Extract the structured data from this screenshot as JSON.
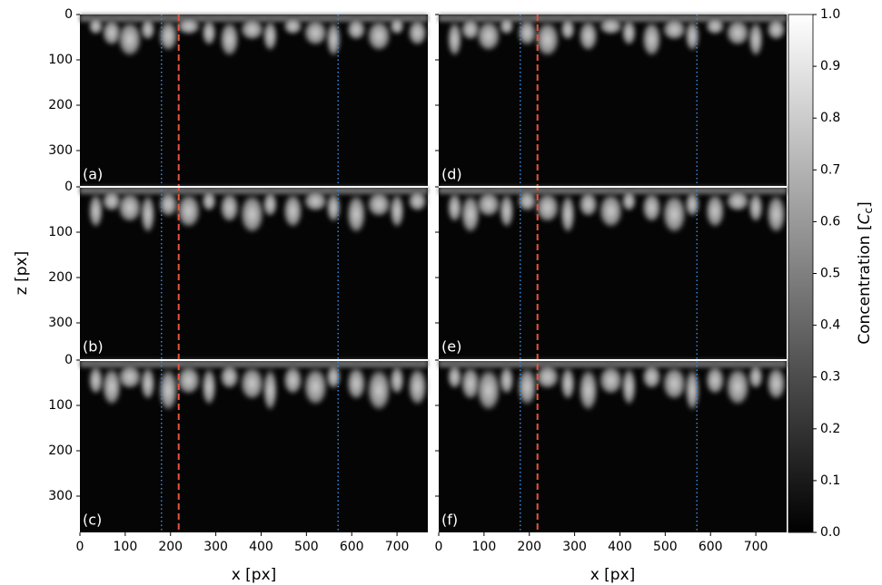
{
  "chart_data": {
    "type": "image",
    "xlabel": "x [px]",
    "ylabel": "z [px]",
    "xlim": [
      0,
      768
    ],
    "ylim": [
      0,
      380
    ],
    "xticks": [
      0,
      100,
      200,
      300,
      400,
      500,
      600,
      700
    ],
    "yticks": [
      0,
      100,
      200,
      300
    ],
    "panels": [
      {
        "label": "(a)"
      },
      {
        "label": "(b)"
      },
      {
        "label": "(c)"
      },
      {
        "label": "(d)"
      },
      {
        "label": "(e)"
      },
      {
        "label": "(f)"
      }
    ],
    "lines": [
      {
        "x": 180,
        "color": "#3a86d8",
        "style": "dotted"
      },
      {
        "x": 218,
        "color": "#e8533a",
        "style": "dashed"
      },
      {
        "x": 570,
        "color": "#3a86d8",
        "style": "dotted"
      }
    ],
    "colorbar": {
      "label": [
        "Concentration [",
        "C",
        "c",
        "]"
      ],
      "lim": [
        0,
        1
      ],
      "ticks": [
        {
          "value": 0,
          "label": "0.0"
        },
        {
          "value": 0.1,
          "label": "0.1"
        },
        {
          "value": 0.2,
          "label": "0.2"
        },
        {
          "value": 0.3,
          "label": "0.3"
        },
        {
          "value": 0.4,
          "label": "0.4"
        },
        {
          "value": 0.5,
          "label": "0.5"
        },
        {
          "value": 0.6,
          "label": "0.6"
        },
        {
          "value": 0.7,
          "label": "0.7"
        },
        {
          "value": 0.8,
          "label": "0.8"
        },
        {
          "value": 0.9,
          "label": "0.9"
        },
        {
          "value": 1,
          "label": "1.0"
        }
      ]
    }
  }
}
